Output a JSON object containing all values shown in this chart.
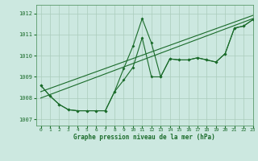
{
  "title": "Graphe pression niveau de la mer (hPa)",
  "background_color": "#cce8e0",
  "grid_color": "#aaccbc",
  "line_color": "#1a6b2a",
  "xlim": [
    -0.5,
    23
  ],
  "ylim": [
    1006.7,
    1012.4
  ],
  "yticks": [
    1007,
    1008,
    1009,
    1010,
    1011,
    1012
  ],
  "xticks": [
    0,
    1,
    2,
    3,
    4,
    5,
    6,
    7,
    8,
    9,
    10,
    11,
    12,
    13,
    14,
    15,
    16,
    17,
    18,
    19,
    20,
    21,
    22,
    23
  ],
  "line_zigzag": {
    "x": [
      0,
      1,
      2,
      3,
      4,
      5,
      6,
      7,
      8,
      9,
      10,
      11,
      12,
      13,
      14,
      15,
      16,
      17,
      18,
      19,
      20,
      21,
      22,
      23
    ],
    "y": [
      1008.6,
      1008.1,
      1007.7,
      1007.45,
      1007.4,
      1007.4,
      1007.4,
      1007.4,
      1008.3,
      1009.4,
      1010.45,
      1011.75,
      1010.6,
      1009.0,
      1009.85,
      1009.8,
      1009.8,
      1009.9,
      1009.8,
      1009.7,
      1010.1,
      1011.3,
      1011.4,
      1011.7
    ]
  },
  "line_smooth": {
    "x": [
      0,
      1,
      2,
      3,
      4,
      5,
      6,
      7,
      8,
      9,
      10,
      11,
      12,
      13,
      14,
      15,
      16,
      17,
      18,
      19,
      20,
      21,
      22,
      23
    ],
    "y": [
      1008.6,
      1008.1,
      1007.7,
      1007.45,
      1007.4,
      1007.4,
      1007.4,
      1007.4,
      1008.3,
      1008.85,
      1009.45,
      1010.85,
      1009.0,
      1009.0,
      1009.85,
      1009.8,
      1009.8,
      1009.9,
      1009.8,
      1009.7,
      1010.1,
      1011.3,
      1011.4,
      1011.7
    ]
  },
  "line_trend1": {
    "x": [
      0,
      23
    ],
    "y": [
      1008.0,
      1011.75
    ]
  },
  "line_trend2": {
    "x": [
      0,
      23
    ],
    "y": [
      1008.3,
      1011.9
    ]
  }
}
